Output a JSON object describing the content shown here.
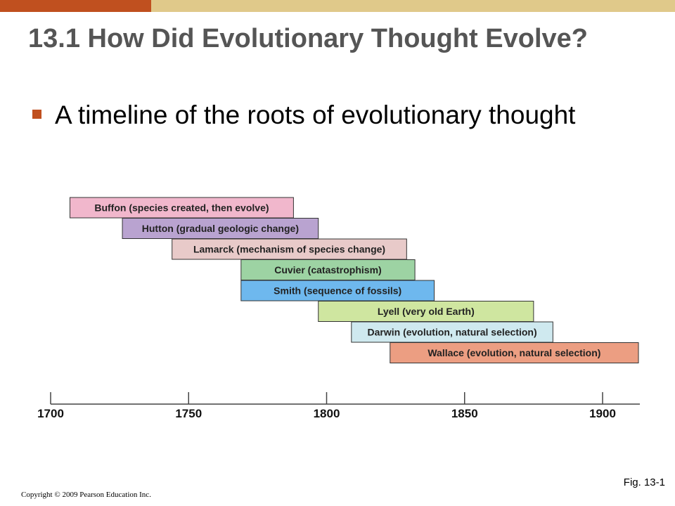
{
  "slide": {
    "title": "13.1 How Did Evolutionary Thought Evolve?",
    "bullet": "A timeline of the roots of evolutionary thought",
    "figure_label": "Fig. 13-1",
    "copyright": "Copyright © 2009 Pearson Education Inc."
  },
  "colors": {
    "accent": "#c0501f",
    "band": "#e0c98a",
    "title": "#555555"
  },
  "timeline": {
    "axis": {
      "min": 1700,
      "max": 1913,
      "ticks": [
        "1700",
        "1750",
        "1800",
        "1850",
        "1900"
      ]
    },
    "entries": [
      {
        "label": "Buffon (species created, then evolve)",
        "start": 1707,
        "end": 1788,
        "color": "#f1b7cc"
      },
      {
        "label": "Hutton (gradual geologic change)",
        "start": 1726,
        "end": 1797,
        "color": "#b9a3d0"
      },
      {
        "label": "Lamarck (mechanism of species change)",
        "start": 1744,
        "end": 1829,
        "color": "#e8cac9"
      },
      {
        "label": "Cuvier (catastrophism)",
        "start": 1769,
        "end": 1832,
        "color": "#9dd3a3"
      },
      {
        "label": "Smith (sequence of fossils)",
        "start": 1769,
        "end": 1839,
        "color": "#6eb8ee"
      },
      {
        "label": "Lyell (very old Earth)",
        "start": 1797,
        "end": 1875,
        "color": "#cfe6a0"
      },
      {
        "label": "Darwin (evolution, natural selection)",
        "start": 1809,
        "end": 1882,
        "color": "#cfe9ef"
      },
      {
        "label": "Wallace (evolution, natural selection)",
        "start": 1823,
        "end": 1913,
        "color": "#ec9e82"
      }
    ]
  }
}
